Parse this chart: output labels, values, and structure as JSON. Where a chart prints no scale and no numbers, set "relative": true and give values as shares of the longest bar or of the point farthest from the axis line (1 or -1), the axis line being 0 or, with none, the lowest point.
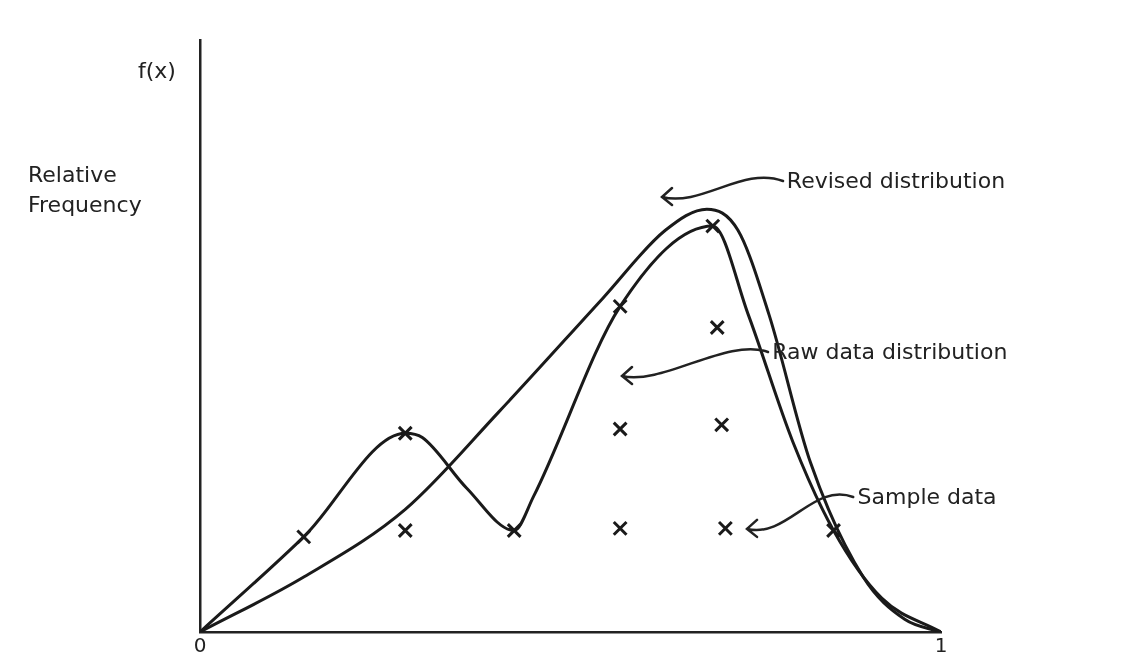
{
  "chart_data": {
    "type": "line",
    "relative": true,
    "ylabel": "Relative Frequency",
    "annotations": [
      "f(x)"
    ],
    "xlim": [
      0,
      1
    ],
    "xticks": [
      0,
      1
    ],
    "grid": false,
    "legend": false,
    "series": [
      {
        "name": "Revised distribution",
        "color": "#1a1a1a",
        "type": "line",
        "marker": "none",
        "x": [
          0,
          0.14,
          0.277,
          0.403,
          0.544,
          0.628,
          0.684,
          0.726,
          0.768,
          0.824,
          0.895,
          0.951,
          1
        ],
        "values": [
          0,
          0.13,
          0.29,
          0.52,
          0.79,
          0.95,
          1,
          0.95,
          0.75,
          0.4,
          0.13,
          0.03,
          0
        ]
      },
      {
        "name": "Raw data distribution",
        "color": "#1a1a1a",
        "type": "line",
        "marker": "none",
        "x": [
          0,
          0.14,
          0.277,
          0.3,
          0.36,
          0.424,
          0.45,
          0.567,
          0.692,
          0.74,
          0.8,
          0.855,
          0.92,
          1
        ],
        "values": [
          0,
          0.225,
          0.47,
          0.46,
          0.34,
          0.24,
          0.32,
          0.77,
          0.96,
          0.75,
          0.45,
          0.24,
          0.08,
          0
        ]
      },
      {
        "name": "Sample data",
        "color": "#1a1a1a",
        "type": "scatter",
        "marker": "cross",
        "x": [
          0.14,
          0.277,
          0.277,
          0.424,
          0.567,
          0.567,
          0.567,
          0.692,
          0.698,
          0.704,
          0.709,
          0.855
        ],
        "values": [
          0.225,
          0.47,
          0.24,
          0.24,
          0.77,
          0.48,
          0.245,
          0.96,
          0.72,
          0.49,
          0.245,
          0.24
        ]
      }
    ]
  }
}
